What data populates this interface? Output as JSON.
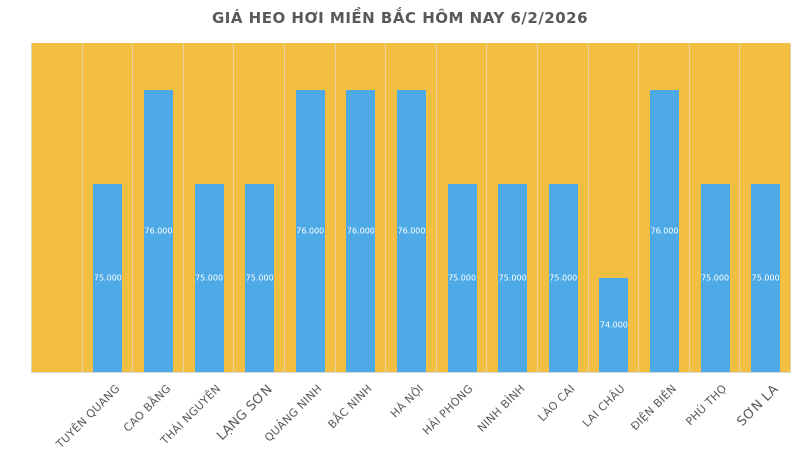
{
  "chart_data": {
    "type": "bar",
    "title": "GIÁ HEO HƠI MIỀN BẮC HÔM NAY 6/2/2026",
    "xlabel": "",
    "ylabel": "",
    "ylim": [
      73000,
      76500
    ],
    "grid": false,
    "legend": null,
    "categories": [
      "",
      "TUYÊN QUANG",
      "CAO BẰNG",
      "THÁI NGUYÊN",
      "LẠNG SƠN",
      "QUẢNG NINH",
      "BẮC NINH",
      "HÀ NỘI",
      "HẢI PHÒNG",
      "NINH BÌNH",
      "LÀO CAI",
      "LAI CHÂU",
      "ĐIỆN BIÊN",
      "PHÚ THỌ",
      "SƠN LA"
    ],
    "values": [
      null,
      75000,
      76000,
      75000,
      75000,
      76000,
      76000,
      76000,
      75000,
      75000,
      75000,
      74000,
      76000,
      75000,
      75000
    ],
    "data_labels": [
      "",
      "75.000",
      "76.000",
      "75.000",
      "75.000",
      "76.000",
      "76.000",
      "76.000",
      "75.000",
      "75.000",
      "75.000",
      "74.000",
      "76.000",
      "75.000",
      "75.000"
    ],
    "colors": {
      "bar": "#4daae6",
      "plot_background": "#f3bf42",
      "title": "#595959",
      "label": "#595959"
    }
  }
}
